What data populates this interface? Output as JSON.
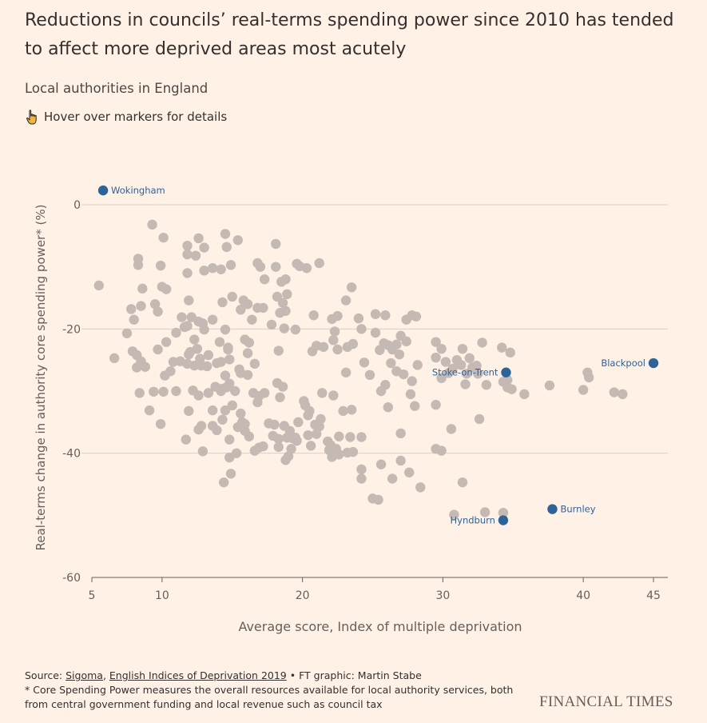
{
  "header": {
    "title": "Reductions in councils’ real-terms spending power since 2010 has tended to affect more deprived areas most acutely",
    "subtitle": "Local authorities in England",
    "hint": "Hover over markers for details",
    "hint_icon": "pointing-hand-icon"
  },
  "footer": {
    "source_prefix": "Source: ",
    "source_1": "Sigoma",
    "source_sep": ", ",
    "source_2": "English Indices of Deprivation 2019",
    "source_suffix": " • FT graphic: Martin Stabe",
    "note_line1": "* Core Spending Power measures the overall resources available for local authority services, both",
    "note_line2": "from central government funding and local revenue such as council tax",
    "brand": "FINANCIAL TIMES"
  },
  "colors": {
    "background": "#fff1e5",
    "point": "#c4bab3",
    "highlight": "#2e6399",
    "gridline": "#d9cec5"
  },
  "chart_data": {
    "type": "scatter",
    "xlabel": "Average score, Index of multiple deprivation",
    "ylabel": "Real-terms change in authority core spending power* (%)",
    "xlim": [
      5,
      46
    ],
    "ylim": [
      -60,
      3
    ],
    "xticks": [
      5,
      10,
      20,
      30,
      40,
      45
    ],
    "yticks": [
      0,
      -20,
      -40,
      -60
    ],
    "grid": "horizontal",
    "highlighted": [
      {
        "name": "Wokingham",
        "x": 5.8,
        "y": 2.3
      },
      {
        "name": "Blackpool",
        "x": 45.0,
        "y": -25.5
      },
      {
        "name": "Stoke-on-Trent",
        "x": 34.5,
        "y": -27.0
      },
      {
        "name": "Burnley",
        "x": 37.8,
        "y": -49.0
      },
      {
        "name": "Hyndburn",
        "x": 34.3,
        "y": -50.8
      }
    ],
    "points": [
      [
        5.5,
        -13
      ],
      [
        9.3,
        -3.2
      ],
      [
        10.1,
        -5.3
      ],
      [
        8.3,
        -8.7
      ],
      [
        8.3,
        -9.7
      ],
      [
        9.9,
        -9.8
      ],
      [
        8.6,
        -13.5
      ],
      [
        10.0,
        -13.2
      ],
      [
        10.3,
        -13.6
      ],
      [
        7.8,
        -16.8
      ],
      [
        8.5,
        -16.3
      ],
      [
        9.5,
        -16.0
      ],
      [
        9.7,
        -17.2
      ],
      [
        8.0,
        -18.5
      ],
      [
        7.5,
        -20.7
      ],
      [
        10.3,
        -22.1
      ],
      [
        7.9,
        -23.6
      ],
      [
        8.2,
        -24.2
      ],
      [
        6.6,
        -24.7
      ],
      [
        8.5,
        -25.2
      ],
      [
        8.2,
        -26.2
      ],
      [
        8.8,
        -26.1
      ],
      [
        9.7,
        -23.3
      ],
      [
        10.2,
        -27.5
      ],
      [
        10.6,
        -26.8
      ],
      [
        10.8,
        -25.3
      ],
      [
        8.4,
        -30.3
      ],
      [
        9.4,
        -30.1
      ],
      [
        10.1,
        -30.1
      ],
      [
        9.1,
        -33.1
      ],
      [
        9.9,
        -35.3
      ],
      [
        11.0,
        -30.0
      ],
      [
        11.8,
        -6.6
      ],
      [
        12.6,
        -5.4
      ],
      [
        13.0,
        -6.9
      ],
      [
        11.8,
        -8.0
      ],
      [
        12.4,
        -8.2
      ],
      [
        11.8,
        -11.0
      ],
      [
        13.0,
        -10.6
      ],
      [
        13.6,
        -10.2
      ],
      [
        14.2,
        -10.4
      ],
      [
        11.4,
        -18.1
      ],
      [
        11.9,
        -15.4
      ],
      [
        12.1,
        -18.1
      ],
      [
        11.8,
        -19.5
      ],
      [
        12.6,
        -18.8
      ],
      [
        13.6,
        -18.5
      ],
      [
        13.0,
        -20.1
      ],
      [
        12.3,
        -21.7
      ],
      [
        11.0,
        -20.6
      ],
      [
        11.6,
        -19.7
      ],
      [
        12.9,
        -19.1
      ],
      [
        12.0,
        -23.7
      ],
      [
        12.5,
        -23.2
      ],
      [
        11.9,
        -24.1
      ],
      [
        12.7,
        -24.8
      ],
      [
        13.3,
        -24.2
      ],
      [
        11.8,
        -25.6
      ],
      [
        11.3,
        -25.2
      ],
      [
        13.2,
        -26.0
      ],
      [
        13.9,
        -25.5
      ],
      [
        12.3,
        -25.9
      ],
      [
        12.8,
        -25.9
      ],
      [
        12.2,
        -29.9
      ],
      [
        12.6,
        -30.7
      ],
      [
        13.3,
        -30.3
      ],
      [
        13.8,
        -29.3
      ],
      [
        14.6,
        -29.4
      ],
      [
        14.3,
        -29.6
      ],
      [
        13.6,
        -33.1
      ],
      [
        13.9,
        -36.3
      ],
      [
        12.8,
        -35.6
      ],
      [
        13.6,
        -35.6
      ],
      [
        12.6,
        -36.2
      ],
      [
        11.9,
        -33.2
      ],
      [
        11.7,
        -37.8
      ],
      [
        12.9,
        -39.7
      ],
      [
        14.5,
        -4.7
      ],
      [
        14.6,
        -6.8
      ],
      [
        15.4,
        -5.7
      ],
      [
        14.9,
        -9.7
      ],
      [
        14.3,
        -15.7
      ],
      [
        15.0,
        -14.8
      ],
      [
        15.8,
        -15.4
      ],
      [
        15.6,
        -16.9
      ],
      [
        16.1,
        -16.0
      ],
      [
        16.8,
        -16.6
      ],
      [
        17.2,
        -16.6
      ],
      [
        16.4,
        -18.5
      ],
      [
        15.9,
        -21.7
      ],
      [
        14.5,
        -20.1
      ],
      [
        14.1,
        -22.1
      ],
      [
        14.7,
        -23.3
      ],
      [
        14.7,
        -23.0
      ],
      [
        16.2,
        -22.2
      ],
      [
        16.1,
        -23.9
      ],
      [
        14.8,
        -24.9
      ],
      [
        14.2,
        -25.3
      ],
      [
        15.5,
        -26.5
      ],
      [
        16.6,
        -25.6
      ],
      [
        15.6,
        -27.1
      ],
      [
        14.5,
        -27.5
      ],
      [
        14.8,
        -28.8
      ],
      [
        16.1,
        -27.4
      ],
      [
        14.2,
        -30.0
      ],
      [
        15.2,
        -30.0
      ],
      [
        15.0,
        -32.3
      ],
      [
        14.5,
        -33.1
      ],
      [
        15.6,
        -33.6
      ],
      [
        16.5,
        -30.3
      ],
      [
        16.9,
        -30.8
      ],
      [
        16.8,
        -31.8
      ],
      [
        15.7,
        -35.0
      ],
      [
        14.3,
        -34.6
      ],
      [
        15.4,
        -35.8
      ],
      [
        15.9,
        -35.3
      ],
      [
        16.2,
        -37.3
      ],
      [
        15.9,
        -36.4
      ],
      [
        14.8,
        -37.8
      ],
      [
        15.3,
        -40.0
      ],
      [
        14.8,
        -40.7
      ],
      [
        14.4,
        -44.7
      ],
      [
        14.9,
        -43.3
      ],
      [
        17.3,
        -12.0
      ],
      [
        16.8,
        -9.4
      ],
      [
        17.0,
        -10.0
      ],
      [
        18.1,
        -10.0
      ],
      [
        18.1,
        -6.3
      ],
      [
        18.5,
        -12.4
      ],
      [
        18.6,
        -15.8
      ],
      [
        18.8,
        -12.0
      ],
      [
        18.9,
        -14.4
      ],
      [
        18.2,
        -14.8
      ],
      [
        18.4,
        -17.4
      ],
      [
        18.8,
        -17.1
      ],
      [
        18.7,
        -19.9
      ],
      [
        17.8,
        -19.3
      ],
      [
        18.3,
        -23.5
      ],
      [
        19.5,
        -20.1
      ],
      [
        19.6,
        -9.5
      ],
      [
        19.8,
        -9.9
      ],
      [
        20.3,
        -10.2
      ],
      [
        21.2,
        -9.4
      ],
      [
        17.3,
        -30.3
      ],
      [
        18.2,
        -28.7
      ],
      [
        18.4,
        -31.0
      ],
      [
        18.6,
        -29.3
      ],
      [
        18.0,
        -35.4
      ],
      [
        17.6,
        -35.2
      ],
      [
        18.7,
        -35.6
      ],
      [
        19.7,
        -35.0
      ],
      [
        20.1,
        -31.6
      ],
      [
        20.2,
        -32.3
      ],
      [
        19.1,
        -36.4
      ],
      [
        18.3,
        -37.7
      ],
      [
        18.9,
        -37.5
      ],
      [
        19.3,
        -37.6
      ],
      [
        19.5,
        -37.5
      ],
      [
        20.5,
        -33.2
      ],
      [
        20.4,
        -33.9
      ],
      [
        20.9,
        -35.4
      ],
      [
        21.2,
        -35.7
      ],
      [
        21.3,
        -34.5
      ],
      [
        21.0,
        -36.9
      ],
      [
        20.4,
        -37.1
      ],
      [
        19.6,
        -38.0
      ],
      [
        19.2,
        -39.3
      ],
      [
        19.0,
        -40.5
      ],
      [
        18.8,
        -41.1
      ],
      [
        17.9,
        -37.2
      ],
      [
        17.2,
        -38.9
      ],
      [
        16.9,
        -39.1
      ],
      [
        16.6,
        -39.6
      ],
      [
        18.3,
        -39.0
      ],
      [
        20.6,
        -38.8
      ],
      [
        20.8,
        -17.8
      ],
      [
        21.5,
        -22.9
      ],
      [
        21.0,
        -22.7
      ],
      [
        20.7,
        -23.6
      ],
      [
        21.4,
        -30.3
      ],
      [
        22.2,
        -30.7
      ],
      [
        21.8,
        -38.1
      ],
      [
        22.0,
        -38.7
      ],
      [
        21.9,
        -39.5
      ],
      [
        22.4,
        -39.3
      ],
      [
        22.1,
        -40.6
      ],
      [
        22.6,
        -40.2
      ],
      [
        22.6,
        -37.3
      ],
      [
        23.2,
        -39.9
      ],
      [
        23.6,
        -39.8
      ],
      [
        23.4,
        -37.4
      ],
      [
        24.2,
        -37.4
      ],
      [
        22.9,
        -33.2
      ],
      [
        23.5,
        -33.0
      ],
      [
        23.1,
        -27.0
      ],
      [
        23.6,
        -22.4
      ],
      [
        23.2,
        -22.9
      ],
      [
        22.5,
        -23.3
      ],
      [
        22.3,
        -20.4
      ],
      [
        22.1,
        -18.4
      ],
      [
        22.5,
        -17.9
      ],
      [
        22.2,
        -21.8
      ],
      [
        23.1,
        -15.4
      ],
      [
        23.5,
        -13.3
      ],
      [
        24.0,
        -18.3
      ],
      [
        24.2,
        -20.0
      ],
      [
        24.4,
        -25.4
      ],
      [
        24.8,
        -27.4
      ],
      [
        24.2,
        -42.6
      ],
      [
        24.2,
        -44.1
      ],
      [
        25.0,
        -47.3
      ],
      [
        25.4,
        -47.5
      ],
      [
        25.6,
        -41.8
      ],
      [
        26.4,
        -44.1
      ],
      [
        27.0,
        -41.2
      ],
      [
        27.6,
        -43.1
      ],
      [
        28.4,
        -45.5
      ],
      [
        27.0,
        -36.8
      ],
      [
        28.0,
        -32.4
      ],
      [
        25.6,
        -30.0
      ],
      [
        26.1,
        -32.6
      ],
      [
        25.2,
        -17.6
      ],
      [
        25.9,
        -17.8
      ],
      [
        25.2,
        -20.6
      ],
      [
        25.5,
        -23.4
      ],
      [
        25.8,
        -22.3
      ],
      [
        26.1,
        -22.6
      ],
      [
        26.4,
        -23.3
      ],
      [
        26.7,
        -22.5
      ],
      [
        27.0,
        -21.1
      ],
      [
        26.9,
        -24.1
      ],
      [
        26.3,
        -25.5
      ],
      [
        25.9,
        -29.0
      ],
      [
        26.7,
        -26.8
      ],
      [
        27.2,
        -27.3
      ],
      [
        27.4,
        -22.0
      ],
      [
        27.8,
        -17.8
      ],
      [
        27.4,
        -18.5
      ],
      [
        28.1,
        -18.0
      ],
      [
        27.7,
        -30.5
      ],
      [
        27.8,
        -28.4
      ],
      [
        28.2,
        -25.8
      ],
      [
        29.5,
        -22.1
      ],
      [
        29.9,
        -23.2
      ],
      [
        29.5,
        -24.6
      ],
      [
        30.2,
        -25.3
      ],
      [
        30.4,
        -27.1
      ],
      [
        29.9,
        -27.9
      ],
      [
        30.7,
        -26.4
      ],
      [
        29.5,
        -32.2
      ],
      [
        30.6,
        -36.1
      ],
      [
        29.5,
        -39.3
      ],
      [
        29.9,
        -39.6
      ],
      [
        31.0,
        -25.0
      ],
      [
        31.3,
        -25.8
      ],
      [
        31.4,
        -23.2
      ],
      [
        31.9,
        -24.7
      ],
      [
        31.7,
        -27.2
      ],
      [
        32.1,
        -26.2
      ],
      [
        31.6,
        -28.9
      ],
      [
        32.5,
        -27.2
      ],
      [
        32.8,
        -22.2
      ],
      [
        32.6,
        -34.5
      ],
      [
        30.8,
        -49.9
      ],
      [
        31.4,
        -44.7
      ],
      [
        32.4,
        -25.9
      ],
      [
        33.1,
        -29.0
      ],
      [
        33.0,
        -49.5
      ],
      [
        34.3,
        -49.6
      ],
      [
        34.2,
        -23.0
      ],
      [
        34.8,
        -23.8
      ],
      [
        34.6,
        -28.2
      ],
      [
        34.3,
        -28.5
      ],
      [
        34.6,
        -29.4
      ],
      [
        34.9,
        -29.7
      ],
      [
        35.8,
        -30.5
      ],
      [
        37.6,
        -29.1
      ],
      [
        40.0,
        -29.8
      ],
      [
        40.3,
        -27.0
      ],
      [
        40.4,
        -27.8
      ],
      [
        42.2,
        -30.2
      ],
      [
        42.8,
        -30.5
      ]
    ]
  }
}
